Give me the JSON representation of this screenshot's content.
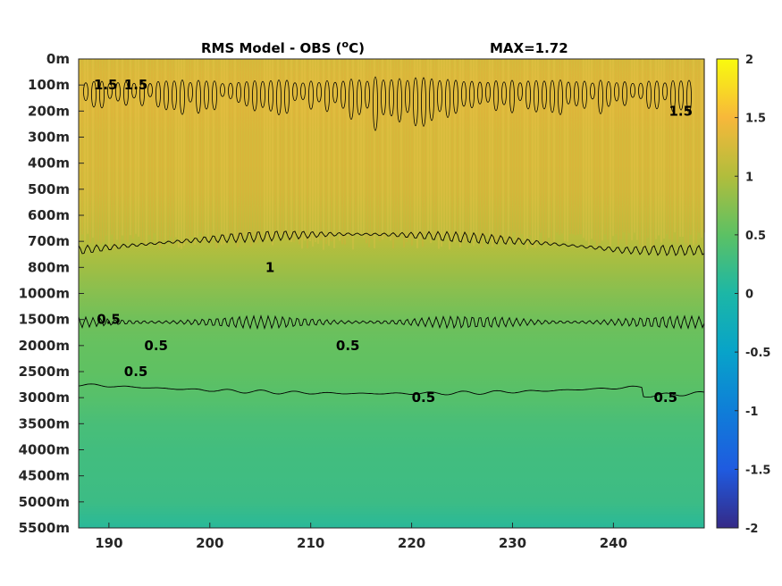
{
  "chart_data": {
    "type": "heatmap",
    "title_main": "RMS Model - OBS (",
    "title_unit_sup": "o",
    "title_unit_end": "C)",
    "title_max": "MAX=1.72",
    "xlabel": "",
    "ylabel": "",
    "x_ticks": [
      "190",
      "200",
      "210",
      "220",
      "230",
      "240"
    ],
    "x_tick_values": [
      190,
      200,
      210,
      220,
      230,
      240
    ],
    "xlim": [
      187,
      249
    ],
    "y_ticks": [
      "0m",
      "100m",
      "200m",
      "300m",
      "400m",
      "500m",
      "600m",
      "700m",
      "800m",
      "1000m",
      "1500m",
      "2000m",
      "2500m",
      "3000m",
      "3500m",
      "4000m",
      "4500m",
      "5000m",
      "5500m"
    ],
    "colorbar": {
      "range": [
        -2,
        2
      ],
      "ticks": [
        "2",
        "1.5",
        "1",
        "0.5",
        "0",
        "-0.5",
        "-1",
        "-1.5",
        "-2"
      ],
      "tick_values": [
        2,
        1.5,
        1,
        0.5,
        0,
        -0.5,
        -1,
        -1.5,
        -2
      ],
      "colormap": "parula"
    },
    "depth_profile": [
      {
        "depth": "0m",
        "value": 1.25
      },
      {
        "depth": "100m",
        "value": 1.3
      },
      {
        "depth": "200m",
        "value": 1.3
      },
      {
        "depth": "300m",
        "value": 1.25
      },
      {
        "depth": "400m",
        "value": 1.25
      },
      {
        "depth": "500m",
        "value": 1.22
      },
      {
        "depth": "600m",
        "value": 1.15
      },
      {
        "depth": "700m",
        "value": 1.05
      },
      {
        "depth": "800m",
        "value": 0.9
      },
      {
        "depth": "1000m",
        "value": 0.75
      },
      {
        "depth": "1500m",
        "value": 0.62
      },
      {
        "depth": "2000m",
        "value": 0.55
      },
      {
        "depth": "2500m",
        "value": 0.52
      },
      {
        "depth": "3000m",
        "value": 0.45
      },
      {
        "depth": "3500m",
        "value": 0.35
      },
      {
        "depth": "4000m",
        "value": 0.3
      },
      {
        "depth": "4500m",
        "value": 0.28
      },
      {
        "depth": "5000m",
        "value": 0.25
      },
      {
        "depth": "5500m",
        "value": 0.1
      }
    ],
    "contour_levels": [
      0.5,
      1,
      1.5
    ],
    "contour_labels": [
      {
        "text": "1.5",
        "x": 188.5,
        "depth": "100m"
      },
      {
        "text": "1.5",
        "x": 191.5,
        "depth": "100m"
      },
      {
        "text": "1.5",
        "x": 245.5,
        "depth": "200m"
      },
      {
        "text": "1",
        "x": 205.5,
        "depth": "800m"
      },
      {
        "text": "0.5",
        "x": 188.8,
        "depth": "1500m"
      },
      {
        "text": "0.5",
        "x": 193.5,
        "depth": "2000m"
      },
      {
        "text": "0.5",
        "x": 212.5,
        "depth": "2000m"
      },
      {
        "text": "0.5",
        "x": 191.5,
        "depth": "2500m"
      },
      {
        "text": "0.5",
        "x": 220.0,
        "depth": "3000m"
      },
      {
        "text": "0.5",
        "x": 244.0,
        "depth": "3000m"
      }
    ]
  }
}
